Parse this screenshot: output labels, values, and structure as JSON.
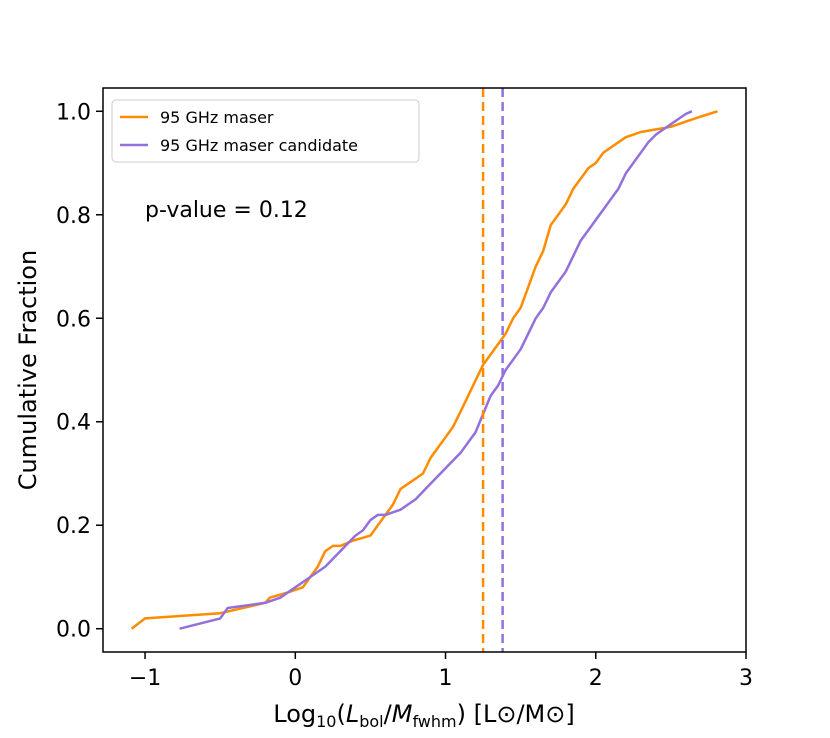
{
  "chart_data": {
    "type": "line",
    "xlabel_parts": {
      "prefix": "Log",
      "sub1": "10",
      "open": "(",
      "num": "L",
      "num_sub": "bol",
      "slash": "/",
      "den": "M",
      "den_sub": "fwhm",
      "close": ")",
      "units": "[L⊙/M⊙]"
    },
    "ylabel": "Cumulative Fraction",
    "xlim": [
      -1.28,
      3.0
    ],
    "ylim": [
      -0.045,
      1.045
    ],
    "xticks": [
      {
        "value": -1,
        "label": "−1"
      },
      {
        "value": 0,
        "label": "0"
      },
      {
        "value": 1,
        "label": "1"
      },
      {
        "value": 2,
        "label": "2"
      },
      {
        "value": 3,
        "label": "3"
      }
    ],
    "yticks": [
      {
        "value": 0.0,
        "label": "0.0"
      },
      {
        "value": 0.2,
        "label": "0.2"
      },
      {
        "value": 0.4,
        "label": "0.4"
      },
      {
        "value": 0.6,
        "label": "0.6"
      },
      {
        "value": 0.8,
        "label": "0.8"
      },
      {
        "value": 1.0,
        "label": "1.0"
      }
    ],
    "annotation": "p-value = 0.12",
    "legend_placement": "upper-left",
    "series": [
      {
        "name": "95 GHz maser",
        "color": "#ff8c00",
        "median": 1.25,
        "x": [
          -1.09,
          -1.0,
          -0.5,
          -0.2,
          -0.17,
          -0.05,
          0.05,
          0.1,
          0.15,
          0.2,
          0.25,
          0.3,
          0.38,
          0.5,
          0.55,
          0.6,
          0.65,
          0.7,
          0.75,
          0.8,
          0.85,
          0.9,
          0.95,
          1.0,
          1.05,
          1.1,
          1.15,
          1.2,
          1.25,
          1.3,
          1.35,
          1.4,
          1.45,
          1.5,
          1.55,
          1.6,
          1.65,
          1.7,
          1.75,
          1.8,
          1.85,
          1.9,
          1.95,
          2.0,
          2.05,
          2.1,
          2.2,
          2.3,
          2.4,
          2.5,
          2.6,
          2.7,
          2.81
        ],
        "y": [
          0.0,
          0.02,
          0.03,
          0.05,
          0.06,
          0.07,
          0.08,
          0.1,
          0.12,
          0.15,
          0.16,
          0.16,
          0.17,
          0.18,
          0.2,
          0.22,
          0.24,
          0.27,
          0.28,
          0.29,
          0.3,
          0.33,
          0.35,
          0.37,
          0.39,
          0.42,
          0.45,
          0.48,
          0.51,
          0.53,
          0.55,
          0.57,
          0.6,
          0.62,
          0.66,
          0.7,
          0.73,
          0.78,
          0.8,
          0.82,
          0.85,
          0.87,
          0.89,
          0.9,
          0.92,
          0.93,
          0.95,
          0.96,
          0.965,
          0.97,
          0.98,
          0.99,
          1.0
        ]
      },
      {
        "name": "95 GHz maser candidate",
        "color": "#9370db",
        "median": 1.38,
        "x": [
          -0.77,
          -0.5,
          -0.45,
          -0.2,
          -0.1,
          0.0,
          0.1,
          0.2,
          0.3,
          0.4,
          0.45,
          0.5,
          0.55,
          0.6,
          0.7,
          0.8,
          0.9,
          1.0,
          1.1,
          1.2,
          1.3,
          1.35,
          1.4,
          1.45,
          1.5,
          1.55,
          1.6,
          1.65,
          1.7,
          1.75,
          1.8,
          1.85,
          1.9,
          1.95,
          2.0,
          2.05,
          2.1,
          2.15,
          2.2,
          2.25,
          2.3,
          2.35,
          2.4,
          2.45,
          2.5,
          2.55,
          2.6,
          2.64
        ],
        "y": [
          0.0,
          0.02,
          0.04,
          0.05,
          0.06,
          0.08,
          0.1,
          0.12,
          0.15,
          0.18,
          0.19,
          0.21,
          0.22,
          0.22,
          0.23,
          0.25,
          0.28,
          0.31,
          0.34,
          0.38,
          0.45,
          0.47,
          0.5,
          0.52,
          0.54,
          0.57,
          0.6,
          0.62,
          0.65,
          0.67,
          0.69,
          0.72,
          0.75,
          0.77,
          0.79,
          0.81,
          0.83,
          0.85,
          0.88,
          0.9,
          0.92,
          0.94,
          0.955,
          0.965,
          0.975,
          0.985,
          0.995,
          1.0
        ]
      }
    ]
  }
}
